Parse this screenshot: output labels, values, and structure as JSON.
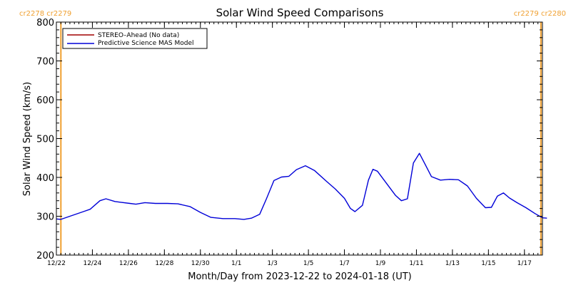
{
  "colors": {
    "stereo": "#a00000",
    "mas": "#0000d8",
    "boundary": "#f0a030",
    "axis": "#000000"
  },
  "chart_data": {
    "type": "line",
    "title": "Solar Wind Speed Comparisons",
    "xlabel": "Month/Day from 2023-12-22 to 2024-01-18 (UT)",
    "ylabel": "Solar Wind Speed (km/s)",
    "ylim": [
      200,
      800
    ],
    "xlim": [
      "2023-12-22 00:00",
      "2024-01-18 00:00"
    ],
    "yticks": [
      200,
      300,
      400,
      500,
      600,
      700,
      800
    ],
    "ytick_labels": [
      "200",
      "300",
      "400",
      "500",
      "600",
      "700",
      "800"
    ],
    "xticks": [
      "2023-12-22",
      "2023-12-24",
      "2023-12-26",
      "2023-12-28",
      "2023-12-30",
      "2024-01-01",
      "2024-01-03",
      "2024-01-05",
      "2024-01-07",
      "2024-01-09",
      "2024-01-11",
      "2024-01-13",
      "2024-01-15",
      "2024-01-17"
    ],
    "xtick_labels": [
      "12/22",
      "12/24",
      "12/26",
      "12/28",
      "12/30",
      "1/1",
      "1/3",
      "1/5",
      "1/7",
      "1/9",
      "1/11",
      "1/13",
      "1/15",
      "1/17"
    ],
    "grid": false,
    "legend_position": "top-left",
    "boundaries": [
      {
        "x": "2023-12-22 06:00",
        "label": "cr2278 cr2279",
        "label_side": "left"
      },
      {
        "x": "2024-01-17 22:00",
        "label": "cr2279 cr2280",
        "label_side": "right"
      }
    ],
    "series": [
      {
        "name": "STEREO–Ahead (No data)",
        "color": "#a00000",
        "x": [],
        "y": []
      },
      {
        "name": "Predictive Science MAS Model",
        "color": "#0000d8",
        "x": [
          "2023-12-22 00:00",
          "2023-12-22 06:00",
          "2023-12-22 18:00",
          "2023-12-23 12:00",
          "2023-12-23 21:00",
          "2023-12-24 10:00",
          "2023-12-24 18:00",
          "2023-12-25 06:00",
          "2023-12-25 14:00",
          "2023-12-26 02:00",
          "2023-12-26 10:00",
          "2023-12-26 22:00",
          "2023-12-27 12:00",
          "2023-12-28 04:00",
          "2023-12-28 18:00",
          "2023-12-29 10:00",
          "2023-12-30 00:00",
          "2023-12-30 14:00",
          "2023-12-31 06:00",
          "2023-12-31 22:00",
          "2024-01-01 10:00",
          "2024-01-01 20:00",
          "2024-01-02 07:00",
          "2024-01-02 16:00",
          "2024-01-03 02:00",
          "2024-01-03 12:00",
          "2024-01-03 22:00",
          "2024-01-04 08:00",
          "2024-01-04 20:00",
          "2024-01-05 08:00",
          "2024-01-06 00:00",
          "2024-01-06 12:00",
          "2024-01-07 00:00",
          "2024-01-07 08:00",
          "2024-01-07 14:00",
          "2024-01-08 00:00",
          "2024-01-08 08:00",
          "2024-01-08 14:00",
          "2024-01-08 20:00",
          "2024-01-09 08:00",
          "2024-01-09 20:00",
          "2024-01-10 04:00",
          "2024-01-10 12:00",
          "2024-01-10 20:00",
          "2024-01-11 04:00",
          "2024-01-11 12:00",
          "2024-01-11 20:00",
          "2024-01-12 08:00",
          "2024-01-12 20:00",
          "2024-01-13 08:00",
          "2024-01-13 20:00",
          "2024-01-14 08:00",
          "2024-01-14 20:00",
          "2024-01-15 04:00",
          "2024-01-15 12:00",
          "2024-01-15 20:00",
          "2024-01-16 04:00",
          "2024-01-16 14:00",
          "2024-01-17 02:00",
          "2024-01-17 14:00",
          "2024-01-18 00:00",
          "2024-01-18 06:00"
        ],
        "y": [
          293,
          292,
          300,
          312,
          318,
          340,
          345,
          338,
          336,
          333,
          331,
          335,
          333,
          333,
          332,
          325,
          310,
          297,
          294,
          294,
          292,
          295,
          305,
          345,
          392,
          401,
          403,
          420,
          430,
          418,
          390,
          370,
          346,
          320,
          312,
          328,
          393,
          421,
          416,
          385,
          354,
          340,
          345,
          437,
          462,
          432,
          402,
          393,
          395,
          394,
          378,
          346,
          322,
          323,
          352,
          360,
          347,
          335,
          322,
          307,
          296,
          295
        ]
      }
    ]
  }
}
